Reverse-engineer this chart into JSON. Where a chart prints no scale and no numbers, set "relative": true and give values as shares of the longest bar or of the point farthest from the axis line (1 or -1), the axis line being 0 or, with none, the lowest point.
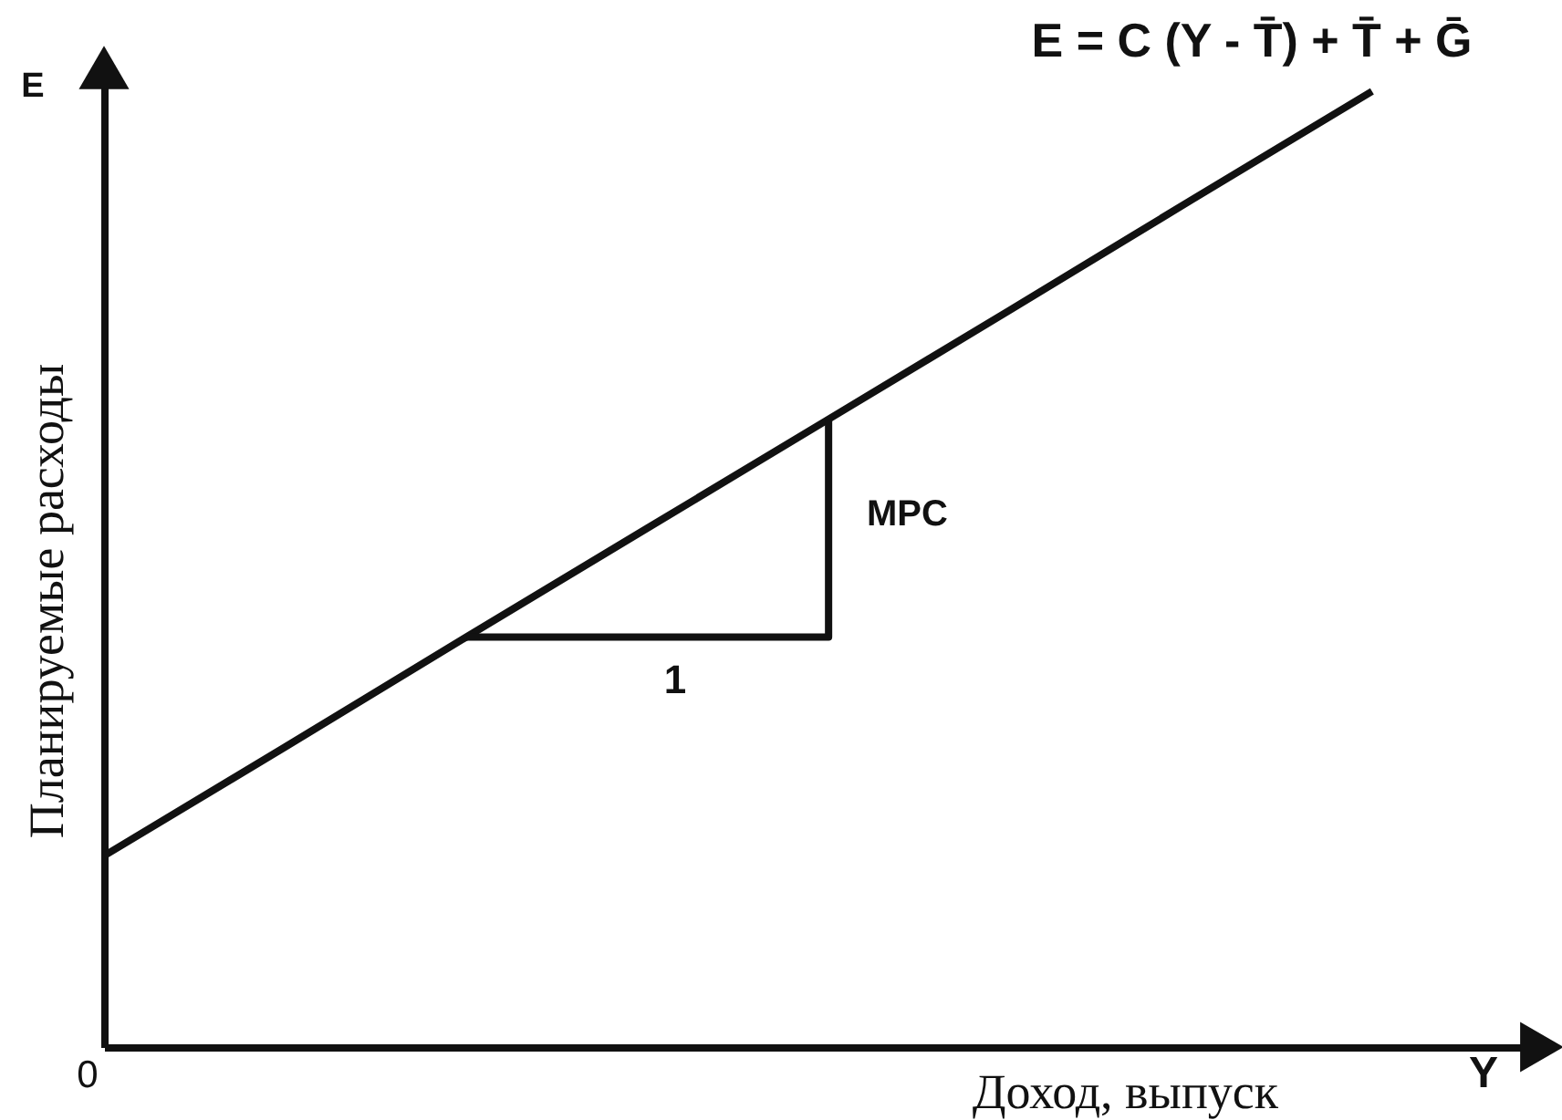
{
  "chart_data": {
    "type": "line",
    "relative": true,
    "xlabel": "Доход, выпуск",
    "ylabel": "Планируемые расходы",
    "categories": [
      null,
      null,
      null,
      null,
      null,
      null,
      null,
      null
    ],
    "series": [
      {
        "color": "#111111",
        "values": [
          0.2,
          0.314,
          0.429,
          0.543,
          0.657,
          0.771,
          0.886,
          1
        ]
      },
      {
        "type": "step",
        "color": "#111111",
        "values": [
          null,
          null,
          0.429,
          0.429,
          0.657,
          null,
          null,
          null
        ]
      }
    ],
    "annotations": [
      "E = C (Y - T̄) + T̄ + Ḡ",
      "MPC",
      "1",
      "E",
      "Y",
      "0"
    ]
  }
}
